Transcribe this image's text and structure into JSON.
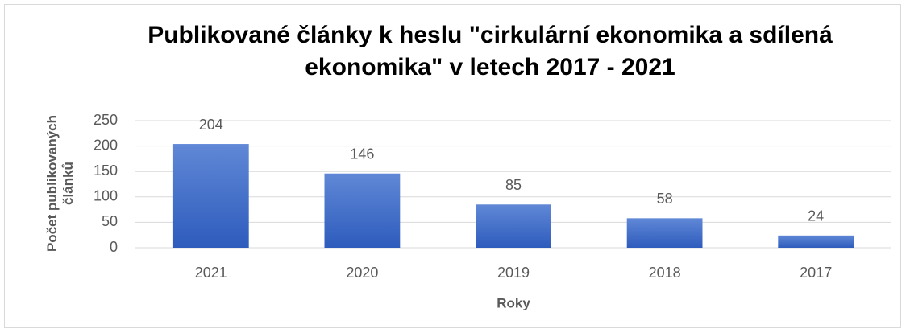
{
  "chart_data": {
    "type": "bar",
    "title": "Publikované články k heslu \"cirkulární ekonomika a sdílená ekonomika\" v letech 2017 - 2021",
    "xlabel": "Roky",
    "ylabel": "Počet publikovaných článků",
    "categories": [
      "2021",
      "2020",
      "2019",
      "2018",
      "2017"
    ],
    "values": [
      204,
      146,
      85,
      58,
      24
    ],
    "color": "#4472c4",
    "ylim": [
      0,
      250
    ],
    "yticks": [
      0,
      50,
      100,
      150,
      200,
      250
    ],
    "grid": true
  }
}
